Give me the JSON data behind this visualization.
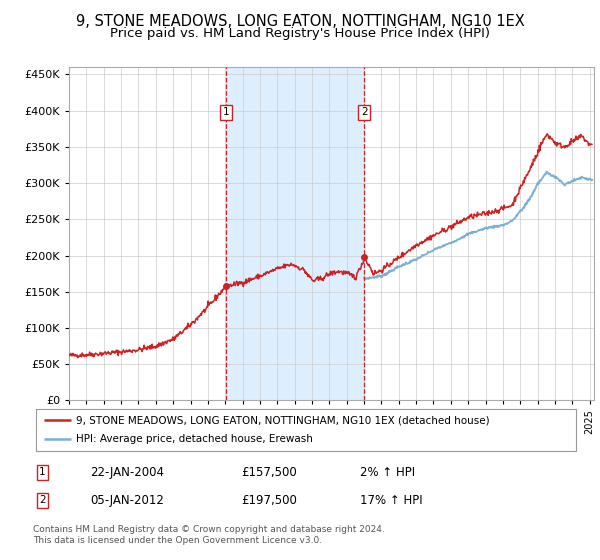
{
  "title": "9, STONE MEADOWS, LONG EATON, NOTTINGHAM, NG10 1EX",
  "subtitle": "Price paid vs. HM Land Registry's House Price Index (HPI)",
  "title_fontsize": 10.5,
  "subtitle_fontsize": 9.5,
  "legend_line1": "9, STONE MEADOWS, LONG EATON, NOTTINGHAM, NG10 1EX (detached house)",
  "legend_line2": "HPI: Average price, detached house, Erewash",
  "annotation1_date": "22-JAN-2004",
  "annotation1_price": "£157,500",
  "annotation1_hpi": "2% ↑ HPI",
  "annotation2_date": "05-JAN-2012",
  "annotation2_price": "£197,500",
  "annotation2_hpi": "17% ↑ HPI",
  "hpi_color": "#7bafd4",
  "price_color": "#cc2222",
  "vline_color": "#cc2222",
  "shade_color": "#ddeeff",
  "background_color": "#ffffff",
  "grid_color": "#cccccc",
  "ylim": [
    0,
    460000
  ],
  "yticks": [
    0,
    50000,
    100000,
    150000,
    200000,
    250000,
    300000,
    350000,
    400000,
    450000
  ],
  "footer_text": "Contains HM Land Registry data © Crown copyright and database right 2024.\nThis data is licensed under the Open Government Licence v3.0."
}
